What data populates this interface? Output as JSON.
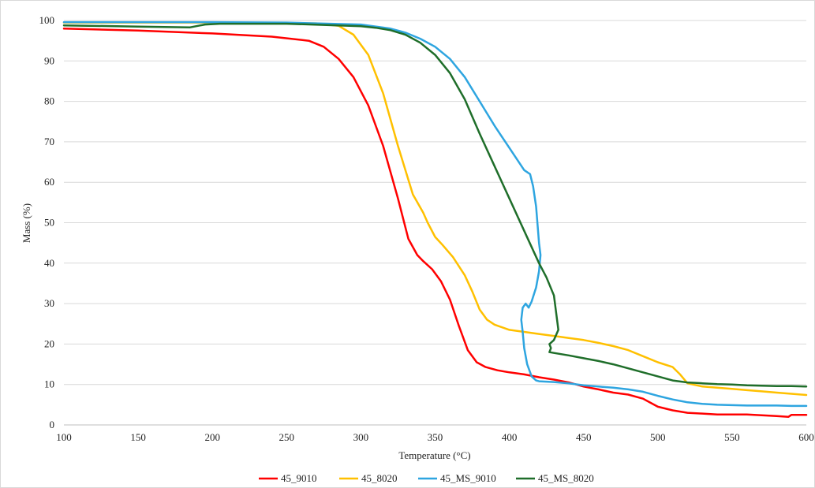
{
  "chart_data": {
    "type": "line",
    "xlabel": "Temperature (°C)",
    "ylabel": "Mass (%)",
    "xlim": [
      100,
      600
    ],
    "ylim": [
      0,
      100
    ],
    "xticks": [
      100,
      150,
      200,
      250,
      300,
      350,
      400,
      450,
      500,
      550,
      600
    ],
    "yticks": [
      0,
      10,
      20,
      30,
      40,
      50,
      60,
      70,
      80,
      90,
      100
    ],
    "grid": "horizontal",
    "legend_position": "bottom",
    "series": [
      {
        "name": "45_9010",
        "color": "#ff0000",
        "x": [
          100,
          150,
          200,
          240,
          265,
          275,
          285,
          295,
          305,
          315,
          325,
          332,
          338,
          342,
          348,
          354,
          360,
          366,
          372,
          378,
          384,
          392,
          400,
          410,
          420,
          430,
          440,
          450,
          460,
          470,
          480,
          490,
          500,
          510,
          520,
          530,
          540,
          550,
          560,
          570,
          580,
          588,
          590,
          595,
          600
        ],
        "y": [
          98,
          97.5,
          96.8,
          96,
          95,
          93.5,
          90.5,
          86,
          79,
          69,
          56,
          46,
          42,
          40.5,
          38.5,
          35.5,
          31,
          24.5,
          18.5,
          15.5,
          14.3,
          13.5,
          13,
          12.5,
          11.8,
          11.2,
          10.5,
          9.5,
          8.8,
          8,
          7.5,
          6.5,
          4.5,
          3.6,
          3,
          2.8,
          2.6,
          2.6,
          2.6,
          2.4,
          2.2,
          2,
          2.5,
          2.5,
          2.5
        ]
      },
      {
        "name": "45_8020",
        "color": "#ffc000",
        "x": [
          100,
          200,
          270,
          285,
          295,
          305,
          315,
          325,
          335,
          342,
          345,
          350,
          355,
          362,
          370,
          375,
          380,
          385,
          390,
          400,
          410,
          420,
          430,
          440,
          450,
          460,
          470,
          480,
          490,
          500,
          510,
          515,
          520,
          530,
          540,
          550,
          560,
          570,
          580,
          590,
          600
        ],
        "y": [
          99.5,
          99.5,
          99.3,
          98.7,
          96.5,
          91.5,
          82,
          69,
          57,
          52.5,
          50,
          46.5,
          44.5,
          41.5,
          37,
          33,
          28.5,
          26,
          24.8,
          23.5,
          23,
          22.5,
          22,
          21.5,
          21,
          20.3,
          19.5,
          18.5,
          17,
          15.5,
          14.3,
          12.5,
          10.3,
          9.5,
          9.2,
          8.9,
          8.6,
          8.3,
          8,
          7.7,
          7.4
        ]
      },
      {
        "name": "45_MS_9010",
        "color": "#2ea5e0",
        "x": [
          100,
          200,
          250,
          300,
          320,
          330,
          340,
          350,
          360,
          370,
          380,
          390,
          400,
          410,
          414,
          416,
          418,
          420,
          421,
          420,
          418,
          415,
          413,
          411,
          409,
          408,
          409,
          410,
          412,
          415,
          418,
          420,
          430,
          440,
          450,
          460,
          470,
          480,
          490,
          500,
          510,
          520,
          530,
          540,
          550,
          560,
          570,
          580,
          590,
          600
        ],
        "y": [
          99.6,
          99.6,
          99.5,
          99,
          98,
          97,
          95.5,
          93.5,
          90.5,
          86,
          80,
          74,
          68.5,
          63,
          62,
          59,
          54,
          45,
          42,
          38,
          34,
          30.5,
          29,
          30,
          29,
          26,
          23,
          19,
          15,
          12,
          11,
          10.8,
          10.6,
          10.3,
          9.8,
          9.5,
          9.2,
          8.8,
          8.2,
          7.2,
          6.3,
          5.6,
          5.2,
          5,
          4.9,
          4.8,
          4.8,
          4.8,
          4.7,
          4.7
        ]
      },
      {
        "name": "45_MS_8020",
        "color": "#1f6e2a",
        "x": [
          100,
          150,
          185,
          195,
          205,
          250,
          300,
          310,
          320,
          330,
          340,
          350,
          360,
          370,
          380,
          390,
          400,
          410,
          420,
          425,
          430,
          433,
          430,
          427,
          428,
          427,
          430,
          440,
          450,
          460,
          470,
          480,
          490,
          500,
          510,
          520,
          530,
          540,
          550,
          560,
          570,
          580,
          590,
          600
        ],
        "y": [
          98.8,
          98.5,
          98.3,
          99,
          99.2,
          99.2,
          98.6,
          98.2,
          97.6,
          96.5,
          94.5,
          91.5,
          87,
          80.5,
          72,
          64,
          56,
          48,
          40,
          36.5,
          32,
          23.5,
          21,
          20,
          19,
          18,
          17.8,
          17.2,
          16.5,
          15.8,
          15,
          14,
          13,
          12,
          11,
          10.5,
          10.3,
          10.1,
          10,
          9.8,
          9.7,
          9.6,
          9.6,
          9.5
        ]
      }
    ]
  }
}
